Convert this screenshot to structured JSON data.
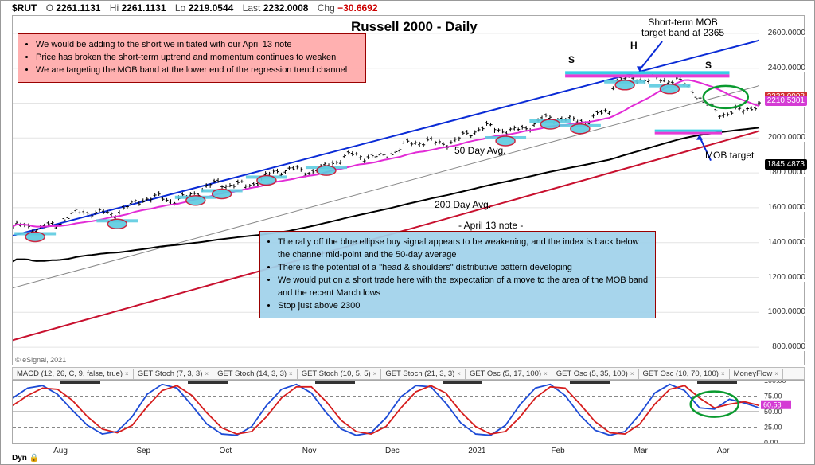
{
  "header": {
    "symbol": "$RUT",
    "open_label": "O",
    "open": "2261.1131",
    "high_label": "Hi",
    "high": "2261.1131",
    "low_label": "Lo",
    "low": "2219.0544",
    "last_label": "Last",
    "last": "2232.0008",
    "chg_label": "Chg",
    "chg": "−30.6692"
  },
  "title": "Russell 2000 - Daily",
  "copyright": "© eSignal, 2021",
  "main_chart": {
    "type": "ohlc-candlestick",
    "ylim": [
      700,
      2700
    ],
    "ytick_step": 200,
    "yticks": [
      "800.0000",
      "1000.0000",
      "1200.0000",
      "1400.0000",
      "1600.0000",
      "1800.0000",
      "2000.0000",
      "2200.0000",
      "2400.0000",
      "2600.0000"
    ],
    "price_labels": [
      {
        "value": "2232.0008",
        "color": "#d03030"
      },
      {
        "value": "1845.4873",
        "color": "#000000"
      },
      {
        "value": "2210.5301",
        "color": "#d43bd4"
      }
    ],
    "xticks": [
      "Aug",
      "Sep",
      "Oct",
      "Nov",
      "Dec",
      "2021",
      "Feb",
      "Mar",
      "Apr"
    ],
    "lines": {
      "regression_upper": {
        "color": "#0a2bd6",
        "width": 2,
        "pts": [
          [
            0,
            0.63
          ],
          [
            1,
            0.07
          ]
        ]
      },
      "regression_mid": {
        "color": "#888888",
        "width": 1,
        "pts": [
          [
            0,
            0.78
          ],
          [
            1,
            0.2
          ]
        ]
      },
      "regression_lower": {
        "color": "#c8102e",
        "width": 2,
        "pts": [
          [
            0,
            0.93
          ],
          [
            1,
            0.33
          ]
        ]
      },
      "ma50": {
        "color": "#e22bd6",
        "width": 2
      },
      "ma200": {
        "color": "#000000",
        "width": 2
      }
    },
    "labels": {
      "ma50": "50 Day Avg.",
      "ma200": "200 Day Avg.",
      "mob_upper": "Short-term MOB\ntarget band at 2365",
      "mob_lower": "MOB target",
      "april13": "- April 13 note -",
      "S": "S",
      "H": "H"
    },
    "mob_bands": {
      "upper": {
        "y": 2365,
        "color1": "#36cfe6",
        "color2": "#e63bd4"
      },
      "lower": {
        "y": 2035,
        "color1": "#36cfe6",
        "color2": "#e63bd4"
      }
    },
    "ellipse_color_fill": "#5ccbe0",
    "ellipse_color_stroke": "#c8102e",
    "support_bar_color": "#5ccbe0",
    "green_ellipse_stroke": "#0a9a2f",
    "red_note": {
      "bullets": [
        "We would be adding to the short we initiated with our April 13 note",
        "Price has broken the short-term uptrend and momentum continues to weaken",
        "We are targeting the MOB band at the lower end of the regression trend channel"
      ]
    },
    "blue_note": {
      "header": "",
      "bullets": [
        "The rally off the blue ellipse buy signal appears to be weakening, and the index is back below the channel mid-point and the 50-day average",
        "There is the potential of a \"head & shoulders\" distributive pattern developing",
        "We would put on a short trade here with the expectation of a move to the area of the MOB band and the recent March lows",
        "Stop just above 2300"
      ]
    },
    "bg": "#ffffff",
    "grid_color": "#e4e4e4"
  },
  "indicator_tabs": [
    "MACD (12, 26, C, 9, false, true)",
    "GET Stoch (7, 3, 3)",
    "GET Stoch (14, 3, 3)",
    "GET Stoch (10, 5, 5)",
    "GET Stoch (21, 3, 3)",
    "GET Osc (5, 17, 100)",
    "GET Osc (5, 35, 100)",
    "GET Osc (10, 70, 100)",
    "MoneyFlow"
  ],
  "oscillator": {
    "type": "stochastic",
    "ylim": [
      0,
      100
    ],
    "yticks": [
      "0.00",
      "25.00",
      "50.00",
      "75.00",
      "100.00"
    ],
    "value_label": "60.58",
    "threshold_high": 75,
    "threshold_low": 25,
    "threshold_style": "dashed",
    "line_colors": {
      "fast": "#1d4bd6",
      "slow": "#d61d1d"
    },
    "green_ellipse_stroke": "#0a9a2f",
    "fast": [
      72,
      88,
      92,
      78,
      52,
      28,
      14,
      18,
      42,
      78,
      94,
      88,
      60,
      30,
      14,
      12,
      26,
      60,
      86,
      94,
      80,
      48,
      22,
      12,
      16,
      40,
      74,
      92,
      90,
      64,
      32,
      14,
      12,
      28,
      62,
      88,
      94,
      76,
      44,
      20,
      12,
      18,
      46,
      80,
      94,
      84,
      56,
      54,
      70,
      64,
      56
    ],
    "slow": [
      60,
      76,
      88,
      86,
      68,
      42,
      22,
      16,
      28,
      58,
      84,
      92,
      76,
      48,
      24,
      14,
      18,
      42,
      72,
      90,
      90,
      66,
      36,
      18,
      14,
      26,
      56,
      82,
      92,
      80,
      50,
      26,
      14,
      18,
      42,
      72,
      90,
      88,
      62,
      34,
      16,
      14,
      30,
      62,
      86,
      92,
      72,
      56,
      62,
      66,
      60
    ]
  },
  "corner": "Dyn",
  "colors": {
    "neg": "#c00000",
    "arrow": "#0a2bd6"
  }
}
